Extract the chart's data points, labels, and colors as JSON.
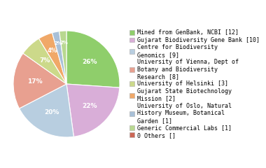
{
  "labels": [
    "Mined from GenBank, NCBI [12]",
    "Gujarat Biodiversity Gene Bank [10]",
    "Centre for Biodiversity\nGenomics [9]",
    "University of Vienna, Dept of\nBotany and Biodiversity\nResearch [8]",
    "University of Helsinki [3]",
    "Gujarat State Biotechnology\nMission [2]",
    "University of Oslo, Natural\nHistory Museum, Botanical\nGarden [1]",
    "Generic Commercial Labs [1]",
    "0 Others []"
  ],
  "values": [
    12,
    10,
    9,
    8,
    3,
    2,
    1,
    1,
    0
  ],
  "colors": [
    "#8fce6b",
    "#d9aed8",
    "#b8cee0",
    "#e8a090",
    "#ccd98a",
    "#f0a868",
    "#a8c0d8",
    "#b8d890",
    "#cc6655"
  ],
  "startangle": 90,
  "background_color": "#ffffff",
  "text_color": "#ffffff",
  "legend_fontsize": 6.0,
  "pct_fontsize": 6.5
}
